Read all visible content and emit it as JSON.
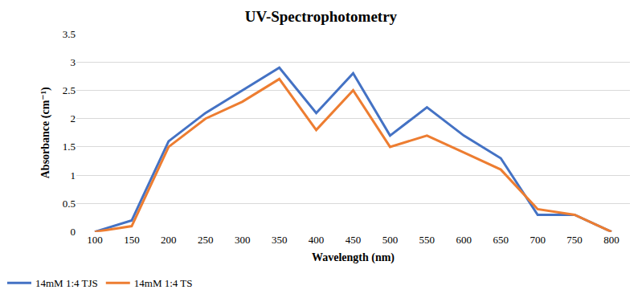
{
  "chart_data": {
    "type": "line",
    "title": "UV-Spectrophotometry",
    "x_label": "Wavelength (nm)",
    "y_label": "Absorbance (cm⁻¹)",
    "categories": [
      "100",
      "150",
      "200",
      "250",
      "300",
      "350",
      "400",
      "450",
      "500",
      "550",
      "600",
      "650",
      "700",
      "750",
      "800"
    ],
    "series": [
      {
        "name": "14mM 1:4 TJS",
        "color": "#4472c4",
        "values": [
          0,
          0.2,
          1.6,
          2.1,
          2.5,
          2.9,
          2.1,
          2.8,
          1.7,
          2.2,
          1.7,
          1.3,
          0.3,
          0.3,
          0
        ]
      },
      {
        "name": "14mM 1:4 TS",
        "color": "#ed7d31",
        "values": [
          0,
          0.1,
          1.5,
          2.0,
          2.3,
          2.7,
          1.8,
          2.5,
          1.5,
          1.7,
          1.4,
          1.1,
          0.4,
          0.3,
          0
        ]
      }
    ],
    "ylim": [
      0,
      3.5
    ],
    "yticks": [
      0,
      0.5,
      1,
      1.5,
      2,
      2.5,
      3,
      3.5
    ],
    "grid": true,
    "legend": "bottom left"
  }
}
